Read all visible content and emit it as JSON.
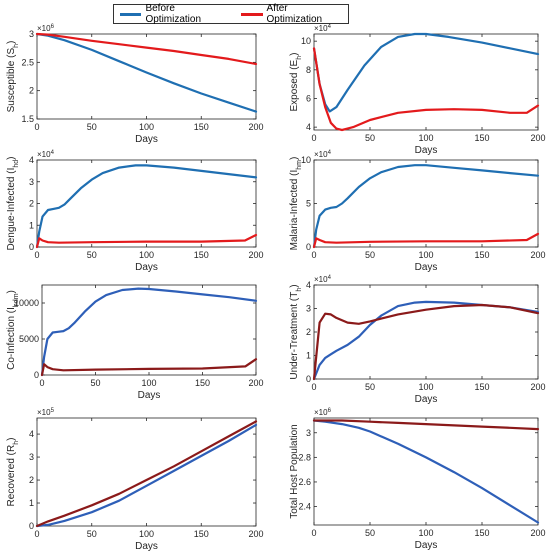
{
  "legend": [
    {
      "label": "Before Optimization",
      "color": "#1f6fb2"
    },
    {
      "label": "After Optimization",
      "color": "#e31a1c"
    }
  ],
  "chart_data": [
    {
      "type": "line",
      "ylabel": "Susceptible (S_h)",
      "xlabel": "Days",
      "xlim": [
        0,
        200
      ],
      "ylim": [
        1.5,
        3
      ],
      "exponent": "×10^6",
      "xticks": [
        0,
        50,
        100,
        150,
        200
      ],
      "yticks": [
        1.5,
        2,
        2.5,
        3
      ],
      "yticklabels": [
        "1.5",
        "2",
        "2.5",
        "3"
      ],
      "series": [
        {
          "name": "Before Optimization",
          "color": "#1f6fb2",
          "x": [
            0,
            10,
            25,
            50,
            75,
            100,
            125,
            150,
            175,
            200
          ],
          "y": [
            3.0,
            2.97,
            2.89,
            2.72,
            2.52,
            2.32,
            2.13,
            1.95,
            1.79,
            1.63
          ]
        },
        {
          "name": "After Optimization",
          "color": "#e31a1c",
          "x": [
            0,
            10,
            25,
            50,
            75,
            100,
            125,
            150,
            175,
            200
          ],
          "y": [
            3.0,
            2.99,
            2.95,
            2.88,
            2.82,
            2.76,
            2.7,
            2.63,
            2.56,
            2.47
          ]
        }
      ]
    },
    {
      "type": "line",
      "ylabel": "Exposed (E_h)",
      "xlabel": "Days",
      "xlim": [
        0,
        200
      ],
      "ylim": [
        3.8,
        10.5
      ],
      "exponent": "×10^4",
      "xticks": [
        0,
        50,
        100,
        150,
        200
      ],
      "yticks": [
        4,
        6,
        8,
        10
      ],
      "yticklabels": [
        "4",
        "6",
        "8",
        "10"
      ],
      "series": [
        {
          "name": "Before Optimization",
          "color": "#1f6fb2",
          "x": [
            0,
            5,
            10,
            14,
            20,
            30,
            45,
            60,
            75,
            90,
            100,
            120,
            150,
            175,
            200
          ],
          "y": [
            9.5,
            7.0,
            5.6,
            5.1,
            5.4,
            6.6,
            8.3,
            9.6,
            10.3,
            10.5,
            10.5,
            10.3,
            9.9,
            9.5,
            9.1
          ]
        },
        {
          "name": "After Optimization",
          "color": "#e31a1c",
          "x": [
            0,
            5,
            10,
            15,
            20,
            25,
            35,
            50,
            75,
            100,
            125,
            150,
            175,
            190,
            200
          ],
          "y": [
            9.5,
            7.0,
            5.4,
            4.3,
            3.9,
            3.8,
            4.0,
            4.5,
            5.0,
            5.2,
            5.25,
            5.2,
            5.0,
            5.0,
            5.5
          ]
        }
      ]
    },
    {
      "type": "line",
      "ylabel": "Dengue-Infected (I_hd)",
      "xlabel": "Days",
      "xlim": [
        0,
        200
      ],
      "ylim": [
        0,
        4
      ],
      "exponent": "×10^4",
      "xticks": [
        0,
        50,
        100,
        150,
        200
      ],
      "yticks": [
        0,
        1,
        2,
        3,
        4
      ],
      "yticklabels": [
        "0",
        "1",
        "2",
        "3",
        "4"
      ],
      "series": [
        {
          "name": "Before Optimization",
          "color": "#1f6fb2",
          "x": [
            0,
            2,
            5,
            10,
            15,
            20,
            25,
            30,
            40,
            50,
            60,
            75,
            90,
            100,
            125,
            150,
            175,
            200
          ],
          "y": [
            0,
            0.7,
            1.4,
            1.7,
            1.75,
            1.8,
            1.95,
            2.2,
            2.7,
            3.1,
            3.4,
            3.65,
            3.75,
            3.75,
            3.65,
            3.5,
            3.35,
            3.2
          ]
        },
        {
          "name": "After Optimization",
          "color": "#e31a1c",
          "x": [
            0,
            2,
            5,
            10,
            20,
            50,
            100,
            150,
            190,
            200
          ],
          "y": [
            0,
            0.4,
            0.3,
            0.22,
            0.2,
            0.22,
            0.25,
            0.25,
            0.3,
            0.55
          ]
        }
      ]
    },
    {
      "type": "line",
      "ylabel": "Malaria-Infected (I_hm)",
      "xlabel": "Days",
      "xlim": [
        0,
        200
      ],
      "ylim": [
        0,
        10
      ],
      "exponent": "×10^4",
      "xticks": [
        0,
        50,
        100,
        150,
        200
      ],
      "yticks": [
        0,
        5,
        10
      ],
      "yticklabels": [
        "0",
        "5",
        "10"
      ],
      "series": [
        {
          "name": "Before Optimization",
          "color": "#1f6fb2",
          "x": [
            0,
            2,
            5,
            10,
            15,
            20,
            25,
            30,
            40,
            50,
            60,
            75,
            90,
            100,
            125,
            150,
            175,
            200
          ],
          "y": [
            0,
            2.0,
            3.6,
            4.3,
            4.5,
            4.6,
            5.0,
            5.6,
            6.9,
            7.9,
            8.6,
            9.2,
            9.4,
            9.4,
            9.1,
            8.8,
            8.5,
            8.2
          ]
        },
        {
          "name": "After Optimization",
          "color": "#e31a1c",
          "x": [
            0,
            2,
            5,
            10,
            20,
            50,
            100,
            150,
            190,
            200
          ],
          "y": [
            0,
            1.0,
            0.8,
            0.55,
            0.5,
            0.6,
            0.65,
            0.65,
            0.8,
            1.5
          ]
        }
      ]
    },
    {
      "type": "line",
      "ylabel": "Co-Infection (I_hdm)",
      "xlabel": "Days",
      "xlim": [
        0,
        200
      ],
      "ylim": [
        0,
        12500
      ],
      "xticks": [
        0,
        50,
        100,
        150,
        200
      ],
      "yticks": [
        0,
        5000,
        10000
      ],
      "yticklabels": [
        "0",
        "5000",
        "10000"
      ],
      "series": [
        {
          "name": "Before Optimization",
          "color": "#2e5fb8",
          "x": [
            0,
            2,
            5,
            10,
            15,
            20,
            25,
            30,
            40,
            50,
            60,
            75,
            90,
            100,
            125,
            150,
            175,
            200
          ],
          "y": [
            0,
            2500,
            5000,
            5900,
            6000,
            6100,
            6500,
            7200,
            8800,
            10200,
            11100,
            11800,
            12000,
            11950,
            11600,
            11200,
            10800,
            10300
          ]
        },
        {
          "name": "After Optimization",
          "color": "#8b1a1a",
          "x": [
            0,
            2,
            5,
            10,
            20,
            50,
            100,
            150,
            190,
            200
          ],
          "y": [
            0,
            1500,
            1100,
            800,
            650,
            750,
            850,
            900,
            1200,
            2200
          ]
        }
      ]
    },
    {
      "type": "line",
      "ylabel": "Under-Treatment (T_h)",
      "xlabel": "Days",
      "xlim": [
        0,
        200
      ],
      "ylim": [
        0,
        4
      ],
      "exponent": "×10^4",
      "xticks": [
        0,
        50,
        100,
        150,
        200
      ],
      "yticks": [
        0,
        1,
        2,
        3,
        4
      ],
      "yticklabels": [
        "0",
        "1",
        "2",
        "3",
        "4"
      ],
      "series": [
        {
          "name": "Before Optimization",
          "color": "#2e5fb8",
          "x": [
            0,
            5,
            10,
            15,
            20,
            30,
            40,
            50,
            60,
            75,
            90,
            100,
            125,
            150,
            175,
            200
          ],
          "y": [
            0,
            0.6,
            0.9,
            1.05,
            1.2,
            1.45,
            1.8,
            2.3,
            2.7,
            3.1,
            3.25,
            3.28,
            3.25,
            3.15,
            3.05,
            2.85
          ]
        },
        {
          "name": "After Optimization",
          "color": "#8b1a1a",
          "x": [
            0,
            5,
            10,
            15,
            20,
            30,
            40,
            50,
            75,
            100,
            125,
            150,
            175,
            200
          ],
          "y": [
            0,
            2.4,
            2.78,
            2.75,
            2.6,
            2.4,
            2.35,
            2.45,
            2.75,
            2.95,
            3.1,
            3.15,
            3.05,
            2.8
          ]
        }
      ]
    },
    {
      "type": "line",
      "ylabel": "Recovered (R_h)",
      "xlabel": "Days",
      "xlim": [
        0,
        200
      ],
      "ylim": [
        0,
        4.7
      ],
      "exponent": "×10^5",
      "xticks": [
        0,
        50,
        100,
        150,
        200
      ],
      "yticks": [
        0,
        1,
        2,
        3,
        4
      ],
      "yticklabels": [
        "0",
        "1",
        "2",
        "3",
        "4"
      ],
      "series": [
        {
          "name": "Before Optimization",
          "color": "#2e5fb8",
          "x": [
            0,
            10,
            25,
            50,
            75,
            100,
            125,
            150,
            175,
            200
          ],
          "y": [
            0,
            0.05,
            0.22,
            0.6,
            1.1,
            1.75,
            2.4,
            3.05,
            3.7,
            4.4
          ]
        },
        {
          "name": "After Optimization",
          "color": "#8b1a1a",
          "x": [
            0,
            10,
            25,
            50,
            75,
            100,
            125,
            150,
            175,
            200
          ],
          "y": [
            0,
            0.2,
            0.45,
            0.9,
            1.4,
            2.0,
            2.6,
            3.25,
            3.9,
            4.55
          ]
        }
      ]
    },
    {
      "type": "line",
      "ylabel": "Total Host Population",
      "xlabel": "Days",
      "xlim": [
        0,
        200
      ],
      "ylim": [
        2.25,
        3.12
      ],
      "exponent": "×10^6",
      "xticks": [
        0,
        50,
        100,
        150,
        200
      ],
      "yticks": [
        2.4,
        2.6,
        2.8,
        3.0
      ],
      "yticklabels": [
        "2.4",
        "2.6",
        "2.8",
        "3"
      ],
      "series": [
        {
          "name": "Before Optimization",
          "color": "#2e5fb8",
          "x": [
            0,
            10,
            25,
            40,
            50,
            75,
            100,
            125,
            150,
            175,
            200
          ],
          "y": [
            3.1,
            3.09,
            3.07,
            3.04,
            3.01,
            2.91,
            2.8,
            2.68,
            2.55,
            2.41,
            2.27
          ]
        },
        {
          "name": "After Optimization",
          "color": "#8b1a1a",
          "x": [
            0,
            25,
            50,
            75,
            100,
            125,
            150,
            175,
            200
          ],
          "y": [
            3.1,
            3.1,
            3.09,
            3.08,
            3.07,
            3.06,
            3.05,
            3.04,
            3.03
          ]
        }
      ]
    }
  ]
}
